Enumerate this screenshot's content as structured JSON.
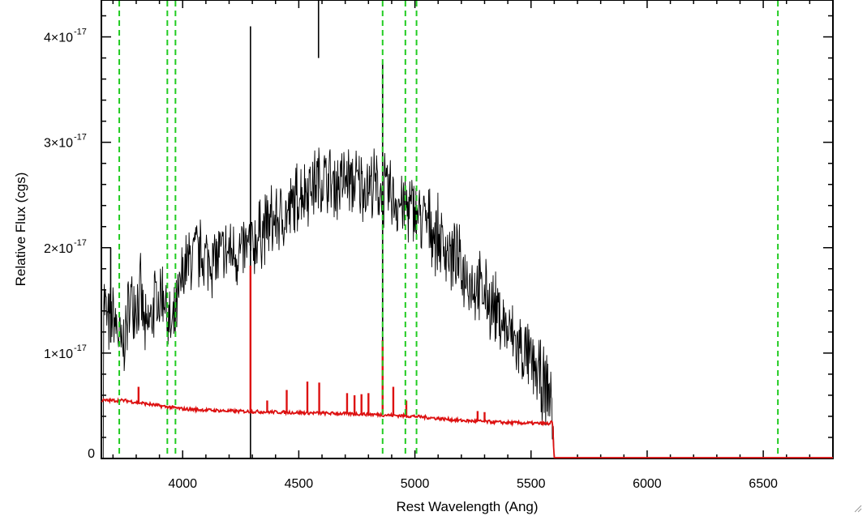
{
  "chart_data": {
    "type": "line",
    "xlabel": "Rest Wavelength (Ang)",
    "ylabel": "Relative Flux (cgs)",
    "xlim": [
      3650,
      6800
    ],
    "ylim": [
      0,
      4.35e-17
    ],
    "x_ticks": [
      4000,
      4500,
      5000,
      5500,
      6000,
      6500
    ],
    "x_tick_labels": [
      "4000",
      "4500",
      "5000",
      "5500",
      "6000",
      "6500"
    ],
    "y_ticks": [
      {
        "value": 0,
        "label": "0",
        "exponent": ""
      },
      {
        "value": 1e-17,
        "label": "1×10",
        "exponent": "-17"
      },
      {
        "value": 2e-17,
        "label": "2×10",
        "exponent": "-17"
      },
      {
        "value": 3e-17,
        "label": "3×10",
        "exponent": "-17"
      },
      {
        "value": 4e-17,
        "label": "4×10",
        "exponent": "-17"
      }
    ],
    "grid": false,
    "vertical_markers": [
      3727,
      3934,
      3969,
      4861,
      4959,
      5007,
      6563
    ],
    "marker_color": "#22cc22",
    "series": [
      {
        "color": "#000000",
        "points": [
          [
            3660,
            1.55e-17
          ],
          [
            3680,
            1.25e-17
          ],
          [
            3700,
            1.35e-17
          ],
          [
            3720,
            1.2e-17
          ],
          [
            3740,
            1e-17
          ],
          [
            3760,
            1.3e-17
          ],
          [
            3780,
            1.55e-17
          ],
          [
            3800,
            1.5e-17
          ],
          [
            3820,
            1.55e-17
          ],
          [
            3840,
            1.15e-17
          ],
          [
            3860,
            1.3e-17
          ],
          [
            3880,
            1.5e-17
          ],
          [
            3900,
            1.5e-17
          ],
          [
            3920,
            1.6e-17
          ],
          [
            3940,
            1.25e-17
          ],
          [
            3960,
            1.2e-17
          ],
          [
            3980,
            1.45e-17
          ],
          [
            4000,
            1.75e-17
          ],
          [
            4050,
            1.95e-17
          ],
          [
            4100,
            1.9e-17
          ],
          [
            4150,
            1.9e-17
          ],
          [
            4200,
            1.95e-17
          ],
          [
            4250,
            1.95e-17
          ],
          [
            4300,
            2e-17
          ],
          [
            4350,
            2.2e-17
          ],
          [
            4400,
            2.25e-17
          ],
          [
            4450,
            2.3e-17
          ],
          [
            4500,
            2.5e-17
          ],
          [
            4550,
            2.6e-17
          ],
          [
            4600,
            2.65e-17
          ],
          [
            4650,
            2.6e-17
          ],
          [
            4700,
            2.65e-17
          ],
          [
            4750,
            2.6e-17
          ],
          [
            4800,
            2.6e-17
          ],
          [
            4850,
            2.55e-17
          ],
          [
            4900,
            2.5e-17
          ],
          [
            4950,
            2.4e-17
          ],
          [
            5000,
            2.35e-17
          ],
          [
            5050,
            2.25e-17
          ],
          [
            5100,
            2.1e-17
          ],
          [
            5150,
            1.95e-17
          ],
          [
            5200,
            1.8e-17
          ],
          [
            5250,
            1.65e-17
          ],
          [
            5300,
            1.55e-17
          ],
          [
            5350,
            1.4e-17
          ],
          [
            5400,
            1.2e-17
          ],
          [
            5450,
            1.05e-17
          ],
          [
            5500,
            9e-18
          ],
          [
            5550,
            7.2e-18
          ],
          [
            5590,
            5.5e-18
          ],
          [
            5600,
            0.0
          ]
        ],
        "noise": 3e-18,
        "spikes": [
          [
            4292,
            4.1e-17,
            -3e-18
          ],
          [
            4585,
            4.4e-17,
            3.8e-17
          ],
          [
            4861,
            3.75e-17,
            5e-18
          ],
          [
            3690,
            2e-17,
            1.1e-17
          ]
        ]
      },
      {
        "color": "#dd1111",
        "points": [
          [
            3650,
            5.5e-18
          ],
          [
            3750,
            5.5e-18
          ],
          [
            3900,
            5e-18
          ],
          [
            4000,
            4.7e-18
          ],
          [
            4200,
            4.5e-18
          ],
          [
            4400,
            4.4e-18
          ],
          [
            4600,
            4.3e-18
          ],
          [
            4800,
            4.2e-18
          ],
          [
            5000,
            4e-18
          ],
          [
            5200,
            3.6e-18
          ],
          [
            5400,
            3.4e-18
          ],
          [
            5580,
            3.3e-18
          ],
          [
            5593,
            3.5e-18
          ],
          [
            5600,
            -5e-19
          ],
          [
            6800,
            -5e-19
          ]
        ],
        "noise": 1.5e-19,
        "lines": [
          [
            3810,
            6.8e-18
          ],
          [
            4292,
            1.83e-17
          ],
          [
            4364,
            5.5e-18
          ],
          [
            4448,
            6.5e-18
          ],
          [
            4537,
            7.3e-18
          ],
          [
            4588,
            7.2e-18
          ],
          [
            4708,
            6.2e-18
          ],
          [
            4740,
            6e-18
          ],
          [
            4770,
            6.1e-18
          ],
          [
            4800,
            6.2e-18
          ],
          [
            4861,
            1.12e-17
          ],
          [
            4907,
            6.8e-18
          ],
          [
            4963,
            5.5e-18
          ],
          [
            5270,
            4.5e-18
          ],
          [
            5300,
            4.4e-18
          ]
        ]
      }
    ]
  }
}
